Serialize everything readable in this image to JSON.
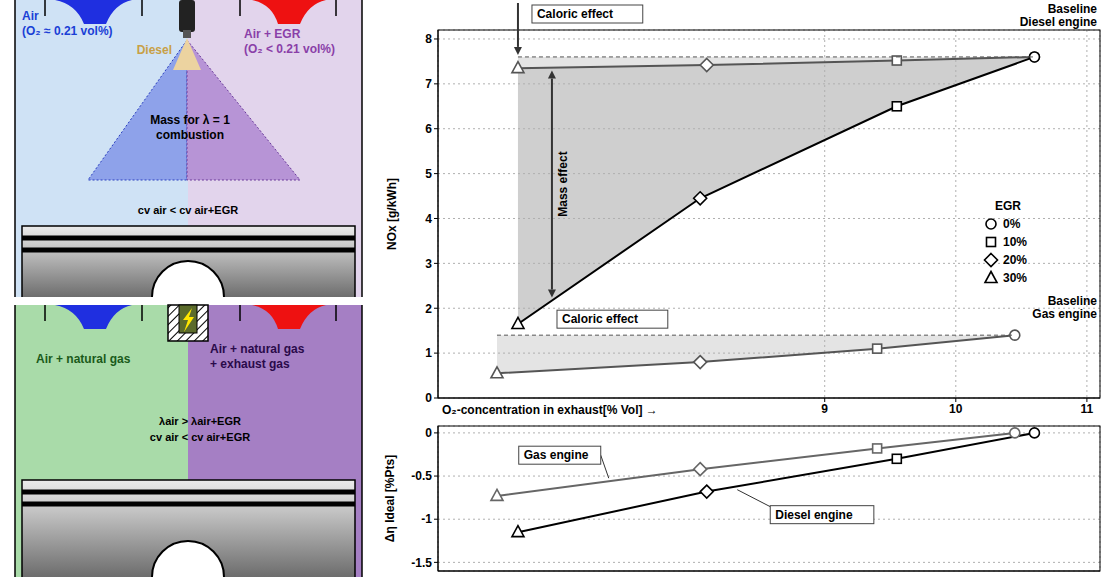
{
  "chart_data": [
    {
      "type": "line",
      "y_label": "NOx [g/kWh]",
      "x_label": "O₂-concentration in exhaust[% Vol] →",
      "xlim": [
        6.05,
        11.1
      ],
      "xticks": [
        9,
        10,
        11
      ],
      "ylim": [
        0,
        8.2
      ],
      "yticks": [
        0,
        1,
        2,
        3,
        4,
        5,
        6,
        7,
        8
      ],
      "grid": true,
      "legend": "right",
      "legend_title": "EGR",
      "egr_levels": [
        {
          "value": 0,
          "label": "0%",
          "marker": "circle"
        },
        {
          "value": 10,
          "label": "10%",
          "marker": "square"
        },
        {
          "value": 20,
          "label": "20%",
          "marker": "diamond"
        },
        {
          "value": 30,
          "label": "30%",
          "marker": "triangle"
        }
      ],
      "series": [
        {
          "color": "#555555",
          "x": [
            6.66,
            8.1,
            9.55,
            10.6
          ],
          "values": [
            7.35,
            7.42,
            7.52,
            7.6
          ],
          "egr": [
            30,
            20,
            10,
            0
          ]
        },
        {
          "color": "#000000",
          "x": [
            6.66,
            8.05,
            9.55,
            10.6
          ],
          "values": [
            1.65,
            4.45,
            6.5,
            7.6
          ],
          "egr": [
            30,
            20,
            10,
            0
          ]
        },
        {
          "color": "#555555",
          "x": [
            6.5,
            8.05,
            9.4,
            10.45
          ],
          "values": [
            0.55,
            0.8,
            1.1,
            1.4
          ],
          "egr": [
            30,
            20,
            10,
            0
          ]
        }
      ],
      "annotations": [
        "Caloric effect",
        "Mass effect",
        "Caloric effect",
        "Baseline Diesel engine",
        "Baseline Gas engine"
      ]
    },
    {
      "type": "line",
      "y_label": "Δη Ideal [%Pts]",
      "xlim": [
        6.05,
        11.1
      ],
      "xticks": [
        9,
        10,
        11
      ],
      "ylim": [
        -1.6,
        0.08
      ],
      "yticks": [
        -1.5,
        -1,
        -0.5,
        0
      ],
      "grid": true,
      "tick_labels": "y",
      "series": [
        {
          "name": "Gas engine",
          "color": "#666666",
          "x": [
            6.5,
            8.05,
            9.4,
            10.45
          ],
          "values": [
            -0.73,
            -0.42,
            -0.18,
            0
          ],
          "egr": [
            30,
            20,
            10,
            0
          ]
        },
        {
          "name": "Diesel engine",
          "color": "#000000",
          "x": [
            6.66,
            8.1,
            9.55,
            10.6
          ],
          "values": [
            -1.15,
            -0.68,
            -0.3,
            0
          ],
          "egr": [
            30,
            20,
            10,
            0
          ]
        }
      ]
    }
  ],
  "diagrams": [
    {
      "regions": [
        {
          "lines": [
            "Air",
            "(O₂ ≈ 0.21 vol%)"
          ],
          "color": "#1a3fd6"
        },
        {
          "lines": [
            "Air + EGR",
            "(O₂ < 0.21 vol%)"
          ],
          "color": "#8a3fa8"
        }
      ],
      "injector": {
        "label": "Diesel",
        "color": "#c8a046"
      },
      "cone_label": [
        "Mass for λ = 1",
        "combustion"
      ],
      "relation": [
        "cv air < cv air+EGR"
      ]
    },
    {
      "regions": [
        {
          "lines": [
            "Air + natural gas"
          ],
          "color": "#1a5a1a"
        },
        {
          "lines": [
            "Air + natural gas",
            "+ exhaust gas"
          ],
          "color": "#2a0a4a"
        }
      ],
      "relation": [
        "λair > λair+EGR",
        "cv air < cv air+EGR"
      ]
    }
  ]
}
